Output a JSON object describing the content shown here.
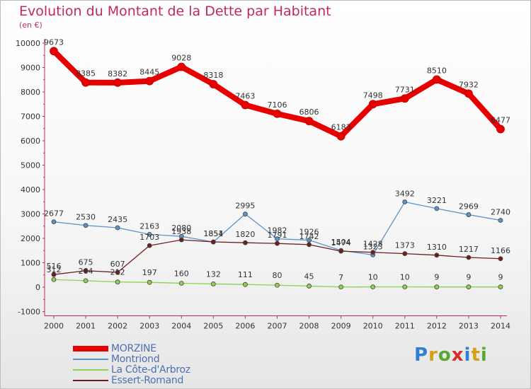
{
  "title": "Evolution du Montant de la Dette par Habitant",
  "unit": "(en €)",
  "brand": {
    "letters": [
      "P",
      "r",
      "o",
      "x",
      "i",
      "t",
      "i"
    ],
    "colors": [
      "#2f7fd6",
      "#d4a017",
      "#5aa832",
      "#d62d2d",
      "#2f7fd6",
      "#d4a017",
      "#5aa832"
    ]
  },
  "chart_data": {
    "type": "line",
    "title": "Evolution du Montant de la Dette par Habitant",
    "ylabel": "(en €)",
    "ylim": [
      -1000,
      10000
    ],
    "yticks": [
      -1000,
      0,
      1000,
      2000,
      3000,
      4000,
      5000,
      6000,
      7000,
      8000,
      9000,
      10000
    ],
    "grid": false,
    "legend_position": "bottom-left",
    "x": [
      "2000",
      "2001",
      "2002",
      "2003",
      "2004",
      "2005",
      "2006",
      "2007",
      "2008",
      "2009",
      "2010",
      "2011",
      "2012",
      "2013",
      "2014"
    ],
    "series": [
      {
        "name": "MORZINE",
        "color": "#e60000",
        "width": 8,
        "values": [
          9673,
          8385,
          8382,
          8445,
          9028,
          8318,
          7463,
          7106,
          6806,
          6183,
          7498,
          7731,
          8510,
          7932,
          6477
        ]
      },
      {
        "name": "Montriond",
        "color": "#5b93c9",
        "width": 1.3,
        "values": [
          2677,
          2530,
          2435,
          2163,
          2080,
          1851,
          2995,
          1982,
          1926,
          1504,
          1323,
          3492,
          3221,
          2969,
          2740
        ]
      },
      {
        "name": "La Côte-d'Arbroz",
        "color": "#8ed152",
        "width": 1.3,
        "values": [
          312,
          264,
          212,
          197,
          160,
          132,
          111,
          80,
          45,
          7,
          10,
          10,
          9,
          9,
          9
        ]
      },
      {
        "name": "Essert-Romand",
        "color": "#6e1e1e",
        "width": 1.3,
        "values": [
          516,
          675,
          607,
          1703,
          1938,
          1854,
          1820,
          1791,
          1742,
          1474,
          1428,
          1373,
          1310,
          1217,
          1166
        ]
      }
    ]
  }
}
